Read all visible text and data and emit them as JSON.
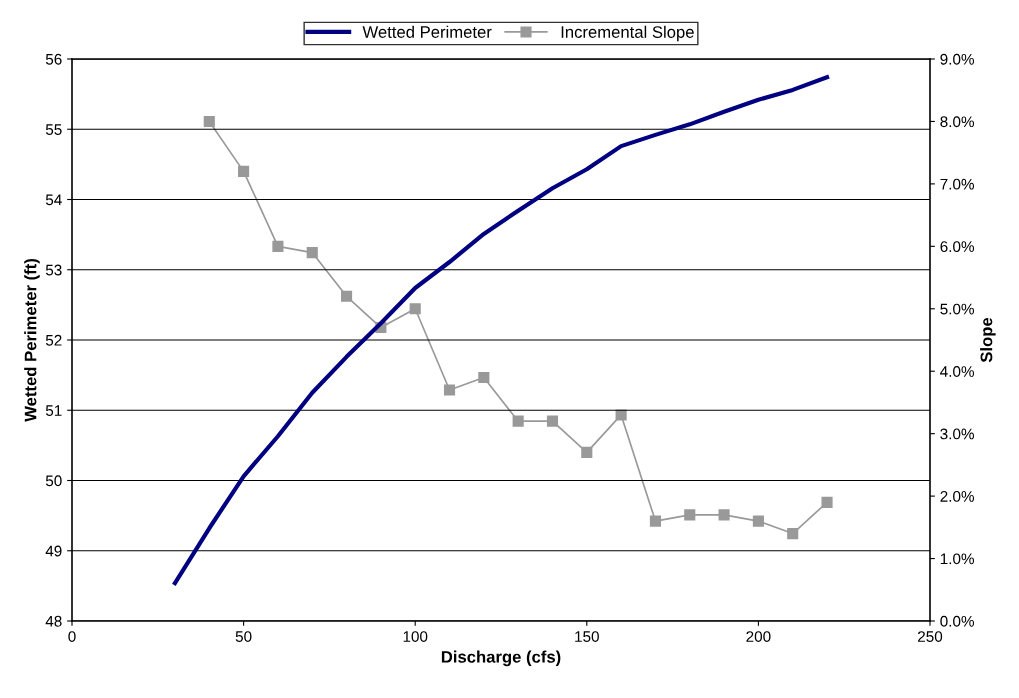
{
  "chart_data": {
    "type": "line",
    "xlabel": "Discharge (cfs)",
    "ylabel": "Wetted Perimeter (ft)",
    "y2label": "Slope",
    "xlim": [
      0,
      250
    ],
    "xticks": [
      0,
      50,
      100,
      150,
      200,
      250
    ],
    "ylim": [
      48,
      56
    ],
    "yticks": [
      48,
      49,
      50,
      51,
      52,
      53,
      54,
      55,
      56
    ],
    "y2lim": [
      0,
      9
    ],
    "y2ticks": [
      {
        "value": 0,
        "label": "0.0%"
      },
      {
        "value": 1,
        "label": "1.0%"
      },
      {
        "value": 2,
        "label": "2.0%"
      },
      {
        "value": 3,
        "label": "3.0%"
      },
      {
        "value": 4,
        "label": "4.0%"
      },
      {
        "value": 5,
        "label": "5.0%"
      },
      {
        "value": 6,
        "label": "6.0%"
      },
      {
        "value": 7,
        "label": "7.0%"
      },
      {
        "value": 8,
        "label": "8.0%"
      },
      {
        "value": 9,
        "label": "9.0%"
      }
    ],
    "grid": "y",
    "legend": "top",
    "series": [
      {
        "name": "Wetted Perimeter",
        "color": "#000080",
        "marker": "none",
        "x": [
          30,
          40,
          50,
          60,
          70,
          80,
          90,
          100,
          110,
          120,
          130,
          140,
          150,
          160,
          170,
          180,
          190,
          200,
          210,
          220
        ],
        "values": [
          48.54,
          49.32,
          50.06,
          50.63,
          51.25,
          51.76,
          52.24,
          52.74,
          53.11,
          53.51,
          53.84,
          54.16,
          54.43,
          54.76,
          54.92,
          55.07,
          55.25,
          55.42,
          55.56,
          55.74
        ]
      },
      {
        "name": "Incremental Slope",
        "color": "#999999",
        "marker": "square",
        "axis": "y2",
        "x": [
          40,
          50,
          60,
          70,
          80,
          90,
          100,
          110,
          120,
          130,
          140,
          150,
          160,
          170,
          180,
          190,
          200,
          210,
          220
        ],
        "values": [
          8.0,
          7.2,
          6.0,
          5.9,
          5.2,
          4.7,
          5.0,
          3.7,
          3.9,
          3.2,
          3.2,
          2.7,
          3.3,
          1.6,
          1.7,
          1.7,
          1.6,
          1.4,
          1.9
        ]
      }
    ]
  }
}
